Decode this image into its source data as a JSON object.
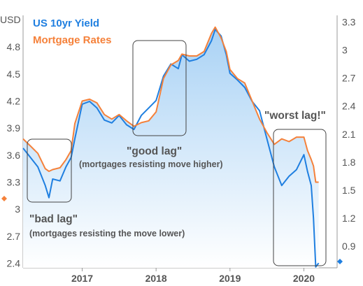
{
  "chart_data": {
    "type": "line",
    "legend": [
      {
        "name": "US 10yr Yield",
        "color": "#1f7fe0"
      },
      {
        "name": "Mortgage Rates",
        "color": "#f5813a"
      }
    ],
    "legend_placement": "top-left",
    "left_axis": {
      "unit_label": "USD",
      "ticks": [
        "4.8",
        "4.5",
        "4.2",
        "3.9",
        "3.6",
        "3.3",
        "3",
        "2.7",
        "2.4"
      ],
      "range": [
        2.35,
        5.15
      ]
    },
    "right_axis": {
      "ticks": [
        "3.3",
        "3",
        "2.7",
        "2.4",
        "2.1",
        "1.8",
        "1.5",
        "1.2",
        "0.9"
      ],
      "range": [
        0.67,
        3.37
      ]
    },
    "x_axis": {
      "ticks": [
        "2017",
        "2018",
        "2019",
        "2020"
      ],
      "range": [
        2016.2,
        2020.45
      ]
    },
    "x": [
      2016.2,
      2016.3,
      2016.4,
      2016.5,
      2016.55,
      2016.6,
      2016.7,
      2016.78,
      2016.85,
      2016.9,
      2017.0,
      2017.1,
      2017.2,
      2017.3,
      2017.4,
      2017.5,
      2017.6,
      2017.7,
      2017.8,
      2017.9,
      2018.0,
      2018.1,
      2018.2,
      2018.3,
      2018.35,
      2018.45,
      2018.55,
      2018.65,
      2018.75,
      2018.8,
      2018.88,
      2018.95,
      2019.0,
      2019.1,
      2019.2,
      2019.3,
      2019.4,
      2019.5,
      2019.6,
      2019.7,
      2019.8,
      2019.9,
      2020.0,
      2020.05,
      2020.1,
      2020.13,
      2020.16,
      2020.2
    ],
    "series": [
      {
        "name": "US 10yr Yield",
        "axis": "right",
        "values": [
          1.95,
          1.85,
          1.75,
          1.55,
          1.42,
          1.62,
          1.6,
          1.75,
          1.85,
          2.05,
          2.42,
          2.45,
          2.38,
          2.25,
          2.22,
          2.3,
          2.2,
          2.15,
          2.3,
          2.38,
          2.46,
          2.72,
          2.85,
          2.8,
          2.95,
          2.88,
          2.9,
          2.95,
          3.1,
          3.22,
          3.15,
          2.95,
          2.75,
          2.68,
          2.6,
          2.45,
          2.35,
          2.05,
          1.75,
          1.55,
          1.65,
          1.72,
          1.88,
          1.7,
          1.55,
          1.2,
          0.68,
          0.72
        ]
      },
      {
        "name": "Mortgage Rates",
        "axis": "left",
        "values": [
          3.78,
          3.7,
          3.62,
          3.45,
          3.42,
          3.44,
          3.46,
          3.55,
          3.65,
          3.95,
          4.2,
          4.22,
          4.18,
          4.05,
          4.0,
          4.05,
          3.98,
          3.92,
          3.96,
          3.98,
          4.08,
          4.45,
          4.6,
          4.65,
          4.72,
          4.7,
          4.7,
          4.75,
          4.95,
          5.02,
          4.9,
          4.75,
          4.55,
          4.45,
          4.4,
          4.2,
          4.0,
          3.85,
          3.72,
          3.78,
          3.75,
          3.8,
          3.8,
          3.65,
          3.55,
          3.48,
          3.3,
          3.3
        ]
      }
    ],
    "annotations": {
      "bad_lag": {
        "title": "\"bad lag\"",
        "caption": "(mortgages resisting the move lower)"
      },
      "good_lag": {
        "title": "\"good lag\"",
        "caption": "(mortgages resisting move higher)"
      },
      "worst_lag": {
        "title": "\"worst lag!\""
      }
    }
  }
}
